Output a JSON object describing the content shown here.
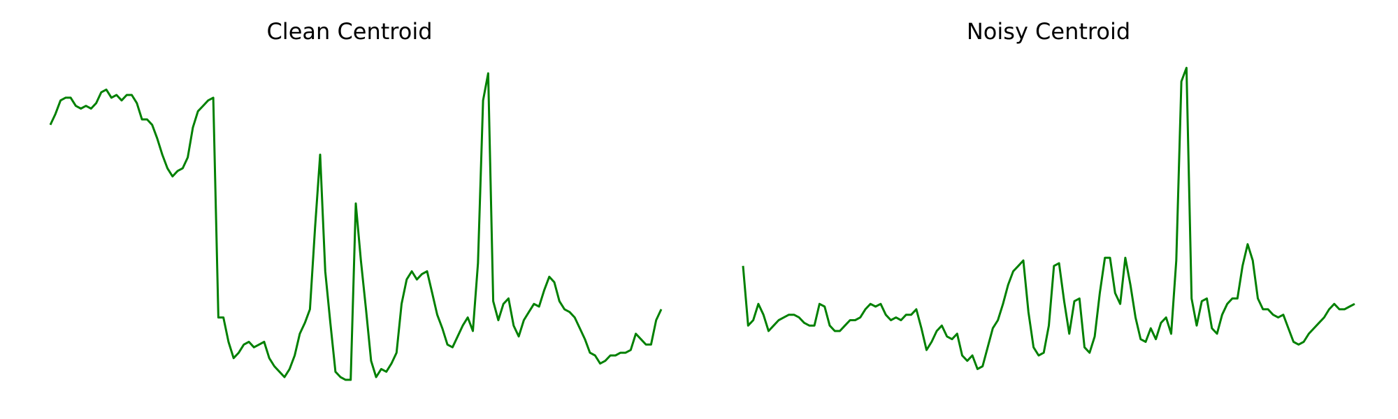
{
  "chart_data": [
    {
      "type": "line",
      "title": "Clean Centroid",
      "axes_visible": false,
      "grid": false,
      "color": "#008000",
      "series": [
        {
          "values": [
            0.72,
            0.76,
            0.81,
            0.82,
            0.82,
            0.79,
            0.78,
            0.79,
            0.78,
            0.8,
            0.84,
            0.85,
            0.82,
            0.83,
            0.81,
            0.83,
            0.83,
            0.8,
            0.74,
            0.74,
            0.72,
            0.67,
            0.61,
            0.56,
            0.53,
            0.55,
            0.56,
            0.6,
            0.71,
            0.77,
            0.79,
            0.81,
            0.82,
            0.01,
            0.01,
            -0.08,
            -0.14,
            -0.12,
            -0.09,
            -0.08,
            -0.1,
            -0.09,
            -0.08,
            -0.14,
            -0.17,
            -0.19,
            -0.21,
            -0.18,
            -0.13,
            -0.05,
            -0.01,
            0.04,
            0.34,
            0.61,
            0.18,
            -0.01,
            -0.19,
            -0.21,
            -0.22,
            -0.22,
            0.43,
            0.22,
            0.04,
            -0.15,
            -0.21,
            -0.18,
            -0.19,
            -0.16,
            -0.12,
            0.06,
            0.15,
            0.18,
            0.15,
            0.17,
            0.18,
            0.1,
            0.02,
            -0.03,
            -0.09,
            -0.1,
            -0.06,
            -0.02,
            0.01,
            -0.04,
            0.21,
            0.81,
            0.91,
            0.07,
            0.0,
            0.06,
            0.08,
            -0.02,
            -0.06,
            0.0,
            0.03,
            0.06,
            0.05,
            0.11,
            0.16,
            0.14,
            0.07,
            0.04,
            0.03,
            0.01,
            -0.03,
            -0.07,
            -0.12,
            -0.13,
            -0.16,
            -0.15,
            -0.13,
            -0.13,
            -0.12,
            -0.12,
            -0.11,
            -0.05,
            -0.07,
            -0.09,
            -0.09,
            0.0,
            0.04
          ]
        }
      ]
    },
    {
      "type": "line",
      "title": "Noisy Centroid",
      "axes_visible": false,
      "grid": false,
      "color": "#008000",
      "series": [
        {
          "values": [
            0.2,
            -0.02,
            0.0,
            0.06,
            0.02,
            -0.04,
            -0.02,
            0.0,
            0.01,
            0.02,
            0.02,
            0.01,
            -0.01,
            -0.02,
            -0.02,
            0.06,
            0.05,
            -0.02,
            -0.04,
            -0.04,
            -0.02,
            0.0,
            0.0,
            0.01,
            0.04,
            0.06,
            0.05,
            0.06,
            0.02,
            0.0,
            0.01,
            0.0,
            0.02,
            0.02,
            0.04,
            -0.03,
            -0.11,
            -0.08,
            -0.04,
            -0.02,
            -0.06,
            -0.07,
            -0.05,
            -0.13,
            -0.15,
            -0.13,
            -0.18,
            -0.17,
            -0.1,
            -0.03,
            0.0,
            0.06,
            0.13,
            0.18,
            0.2,
            0.22,
            0.03,
            -0.1,
            -0.13,
            -0.12,
            -0.02,
            0.2,
            0.21,
            0.07,
            -0.05,
            0.07,
            0.08,
            -0.1,
            -0.12,
            -0.06,
            0.1,
            0.23,
            0.23,
            0.1,
            0.06,
            0.23,
            0.13,
            0.01,
            -0.07,
            -0.08,
            -0.03,
            -0.07,
            -0.01,
            0.01,
            -0.05,
            0.22,
            0.88,
            0.93,
            0.08,
            -0.02,
            0.07,
            0.08,
            -0.03,
            -0.05,
            0.02,
            0.06,
            0.08,
            0.08,
            0.2,
            0.28,
            0.22,
            0.08,
            0.04,
            0.04,
            0.02,
            0.01,
            0.02,
            -0.03,
            -0.08,
            -0.09,
            -0.08,
            -0.05,
            -0.03,
            -0.01,
            0.01,
            0.04,
            0.06,
            0.04,
            0.04,
            0.05,
            0.06
          ]
        }
      ]
    }
  ]
}
